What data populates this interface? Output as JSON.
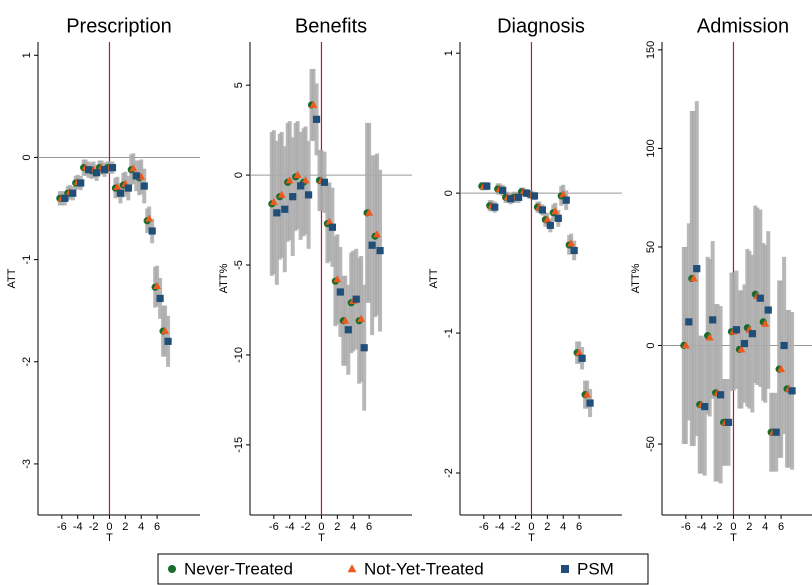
{
  "chart_data": [
    {
      "type": "errorbar",
      "title": "Prescription",
      "xlabel": "T",
      "ylabel": "ATT",
      "x": [
        -6,
        -5,
        -4,
        -3,
        -2,
        -1,
        0,
        1,
        2,
        3,
        4,
        5,
        6,
        7
      ],
      "xlim": [
        -9,
        11.4
      ],
      "xticks": [
        -6,
        -4,
        -2,
        0,
        2,
        4,
        6
      ],
      "ylim": [
        -3.5,
        1.13
      ],
      "yticks": [
        -3,
        -2,
        -1,
        0,
        1
      ],
      "series": [
        {
          "name": "Never-Treated",
          "color": "#1a6b2e",
          "marker": "circle",
          "values": [
            -0.4,
            -0.35,
            -0.25,
            -0.1,
            -0.13,
            -0.1,
            -0.1,
            -0.3,
            -0.27,
            -0.12,
            -0.2,
            -0.62,
            -1.27,
            -1.7
          ],
          "errors": [
            0.07,
            0.07,
            0.07,
            0.08,
            0.08,
            0.07,
            0.06,
            0.1,
            0.12,
            0.15,
            0.17,
            0.12,
            0.2,
            0.25
          ]
        },
        {
          "name": "Not-Yet-Treated",
          "color": "#ee5a1e",
          "marker": "triangle",
          "values": [
            -0.4,
            -0.34,
            -0.24,
            -0.1,
            -0.12,
            -0.1,
            -0.1,
            -0.29,
            -0.26,
            -0.11,
            -0.19,
            -0.6,
            -1.26,
            -1.7
          ],
          "errors": [
            0.07,
            0.07,
            0.07,
            0.08,
            0.08,
            0.07,
            0.06,
            0.1,
            0.12,
            0.15,
            0.17,
            0.12,
            0.2,
            0.25
          ]
        },
        {
          "name": "PSM",
          "color": "#1f4e79",
          "marker": "square",
          "values": [
            -0.4,
            -0.35,
            -0.25,
            -0.12,
            -0.15,
            -0.12,
            -0.1,
            -0.35,
            -0.3,
            -0.18,
            -0.28,
            -0.72,
            -1.38,
            -1.8
          ],
          "errors": [
            0.07,
            0.07,
            0.07,
            0.08,
            0.08,
            0.07,
            0.06,
            0.1,
            0.12,
            0.15,
            0.17,
            0.12,
            0.2,
            0.25
          ]
        }
      ]
    },
    {
      "type": "errorbar",
      "title": "Benefits",
      "xlabel": "T",
      "ylabel": "ATT%",
      "x": [
        -6,
        -5,
        -4,
        -3,
        -2,
        -1,
        0,
        1,
        2,
        3,
        4,
        5,
        6,
        7
      ],
      "xlim": [
        -9,
        11.4
      ],
      "xticks": [
        -6,
        -4,
        -2,
        0,
        2,
        4,
        6
      ],
      "ylim": [
        -18.9,
        7.4
      ],
      "yticks": [
        -15,
        -10,
        -5,
        0,
        5
      ],
      "series": [
        {
          "name": "Never-Treated",
          "color": "#1a6b2e",
          "marker": "circle",
          "values": [
            -1.6,
            -1.2,
            -0.4,
            -0.1,
            -0.4,
            3.9,
            -0.3,
            -2.7,
            -5.9,
            -8.1,
            -7.1,
            -8.1,
            -2.1,
            -3.4
          ],
          "errors": [
            4,
            3.5,
            3.3,
            3,
            3,
            2,
            1.7,
            2.2,
            2.5,
            2.5,
            2.8,
            3.5,
            5,
            4.5
          ]
        },
        {
          "name": "Not-Yet-Treated",
          "color": "#ee5a1e",
          "marker": "triangle",
          "values": [
            -1.5,
            -1.1,
            -0.3,
            0,
            -0.3,
            3.9,
            -0.3,
            -2.6,
            -5.8,
            -8.1,
            -7,
            -8,
            -2.1,
            -3.3
          ],
          "errors": [
            4,
            3.5,
            3.3,
            3,
            3,
            2,
            1.7,
            2.2,
            2.5,
            2.5,
            2.8,
            3.5,
            5,
            4.5
          ]
        },
        {
          "name": "PSM",
          "color": "#1f4e79",
          "marker": "square",
          "values": [
            -2.1,
            -1.9,
            -1.2,
            -0.6,
            -1.1,
            3.1,
            -0.4,
            -2.9,
            -6.5,
            -8.6,
            -6.9,
            -9.6,
            -3.9,
            -4.2
          ],
          "errors": [
            4,
            3.5,
            3.3,
            3,
            3,
            2,
            1.7,
            2.2,
            2.5,
            2.5,
            2.8,
            3.5,
            5,
            4.5
          ]
        }
      ]
    },
    {
      "type": "errorbar",
      "title": "Diagnosis",
      "xlabel": "T",
      "ylabel": "ATT",
      "x": [
        -6,
        -5,
        -4,
        -3,
        -2,
        -1,
        0,
        1,
        2,
        3,
        4,
        5,
        6,
        7
      ],
      "xlim": [
        -9,
        11.4
      ],
      "xticks": [
        -6,
        -4,
        -2,
        0,
        2,
        4,
        6
      ],
      "ylim": [
        -2.3,
        1.08
      ],
      "yticks": [
        -2,
        -1,
        0,
        1
      ],
      "series": [
        {
          "name": "Never-Treated",
          "color": "#1a6b2e",
          "marker": "circle",
          "values": [
            0.05,
            -0.09,
            0.03,
            -0.03,
            -0.03,
            0.01,
            -0.01,
            -0.1,
            -0.19,
            -0.14,
            -0.02,
            -0.37,
            -1.14,
            -1.44
          ],
          "errors": [
            0.03,
            0.04,
            0.04,
            0.04,
            0.04,
            0.03,
            0.03,
            0.04,
            0.05,
            0.06,
            0.07,
            0.07,
            0.08,
            0.1
          ]
        },
        {
          "name": "Not-Yet-Treated",
          "color": "#ee5a1e",
          "marker": "triangle",
          "values": [
            0.05,
            -0.09,
            0.03,
            -0.03,
            -0.03,
            0.01,
            -0.01,
            -0.1,
            -0.19,
            -0.13,
            -0.01,
            -0.36,
            -1.14,
            -1.44
          ],
          "errors": [
            0.03,
            0.04,
            0.04,
            0.04,
            0.04,
            0.03,
            0.03,
            0.04,
            0.05,
            0.06,
            0.07,
            0.07,
            0.08,
            0.1
          ]
        },
        {
          "name": "PSM",
          "color": "#1f4e79",
          "marker": "square",
          "values": [
            0.05,
            -0.1,
            0.02,
            -0.04,
            -0.03,
            0,
            -0.02,
            -0.12,
            -0.23,
            -0.18,
            -0.05,
            -0.41,
            -1.18,
            -1.5
          ],
          "errors": [
            0.03,
            0.04,
            0.04,
            0.04,
            0.04,
            0.03,
            0.03,
            0.04,
            0.05,
            0.06,
            0.07,
            0.07,
            0.08,
            0.1
          ]
        }
      ]
    },
    {
      "type": "errorbar",
      "title": "Admission",
      "xlabel": "T",
      "ylabel": "ATT%",
      "x": [
        -6,
        -5,
        -4,
        -3,
        -2,
        -1,
        0,
        1,
        2,
        3,
        4,
        5,
        6,
        7
      ],
      "xlim": [
        -9,
        11.4
      ],
      "xticks": [
        -6,
        -4,
        -2,
        0,
        2,
        4,
        6
      ],
      "ylim": [
        -86,
        154
      ],
      "yticks": [
        -50,
        0,
        50,
        100,
        150
      ],
      "series": [
        {
          "name": "Never-Treated",
          "color": "#1a6b2e",
          "marker": "circle",
          "values": [
            0,
            34,
            -30,
            5,
            -24,
            -39,
            7,
            -2,
            9,
            26,
            12,
            -44,
            -12,
            -22
          ],
          "errors": [
            50,
            85,
            35,
            40,
            45,
            22,
            30,
            30,
            40,
            45,
            40,
            20,
            45,
            40
          ]
        },
        {
          "name": "Not-Yet-Treated",
          "color": "#ee5a1e",
          "marker": "triangle",
          "values": [
            0,
            34,
            -30,
            4,
            -24,
            -39,
            7,
            -2,
            8,
            25,
            11,
            -44,
            -12,
            -22
          ],
          "errors": [
            50,
            85,
            35,
            40,
            45,
            22,
            30,
            30,
            40,
            45,
            40,
            20,
            45,
            40
          ]
        },
        {
          "name": "PSM",
          "color": "#1f4e79",
          "marker": "square",
          "values": [
            12,
            39,
            -31,
            13,
            -25,
            -39,
            8,
            1,
            6,
            24,
            18,
            -44,
            0,
            -23
          ],
          "errors": [
            50,
            85,
            35,
            40,
            45,
            22,
            30,
            30,
            40,
            45,
            40,
            20,
            45,
            40
          ]
        }
      ]
    }
  ]
}
